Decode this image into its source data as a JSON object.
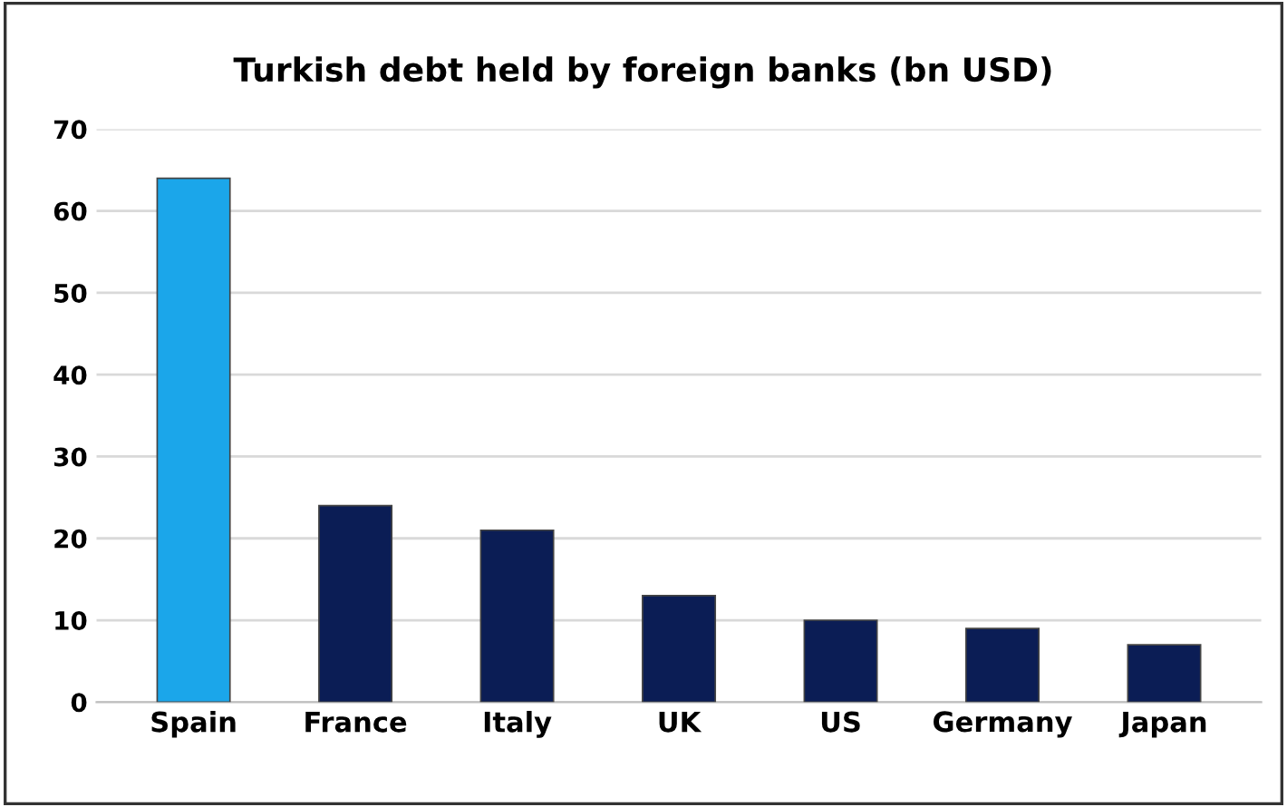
{
  "chart_data": {
    "type": "bar",
    "title": "Turkish debt held by foreign banks (bn USD)",
    "categories": [
      "Spain",
      "France",
      "Italy",
      "UK",
      "US",
      "Germany",
      "Japan"
    ],
    "values": [
      64,
      24,
      21,
      13,
      10,
      9,
      7
    ],
    "colors": [
      "#1ba6ea",
      "#0b1d55",
      "#0b1d55",
      "#0b1d55",
      "#0b1d55",
      "#0b1d55",
      "#0b1d55"
    ],
    "ylim": [
      0,
      70
    ],
    "yticks": [
      0,
      10,
      20,
      30,
      40,
      50,
      60,
      70
    ],
    "grid": "y"
  }
}
